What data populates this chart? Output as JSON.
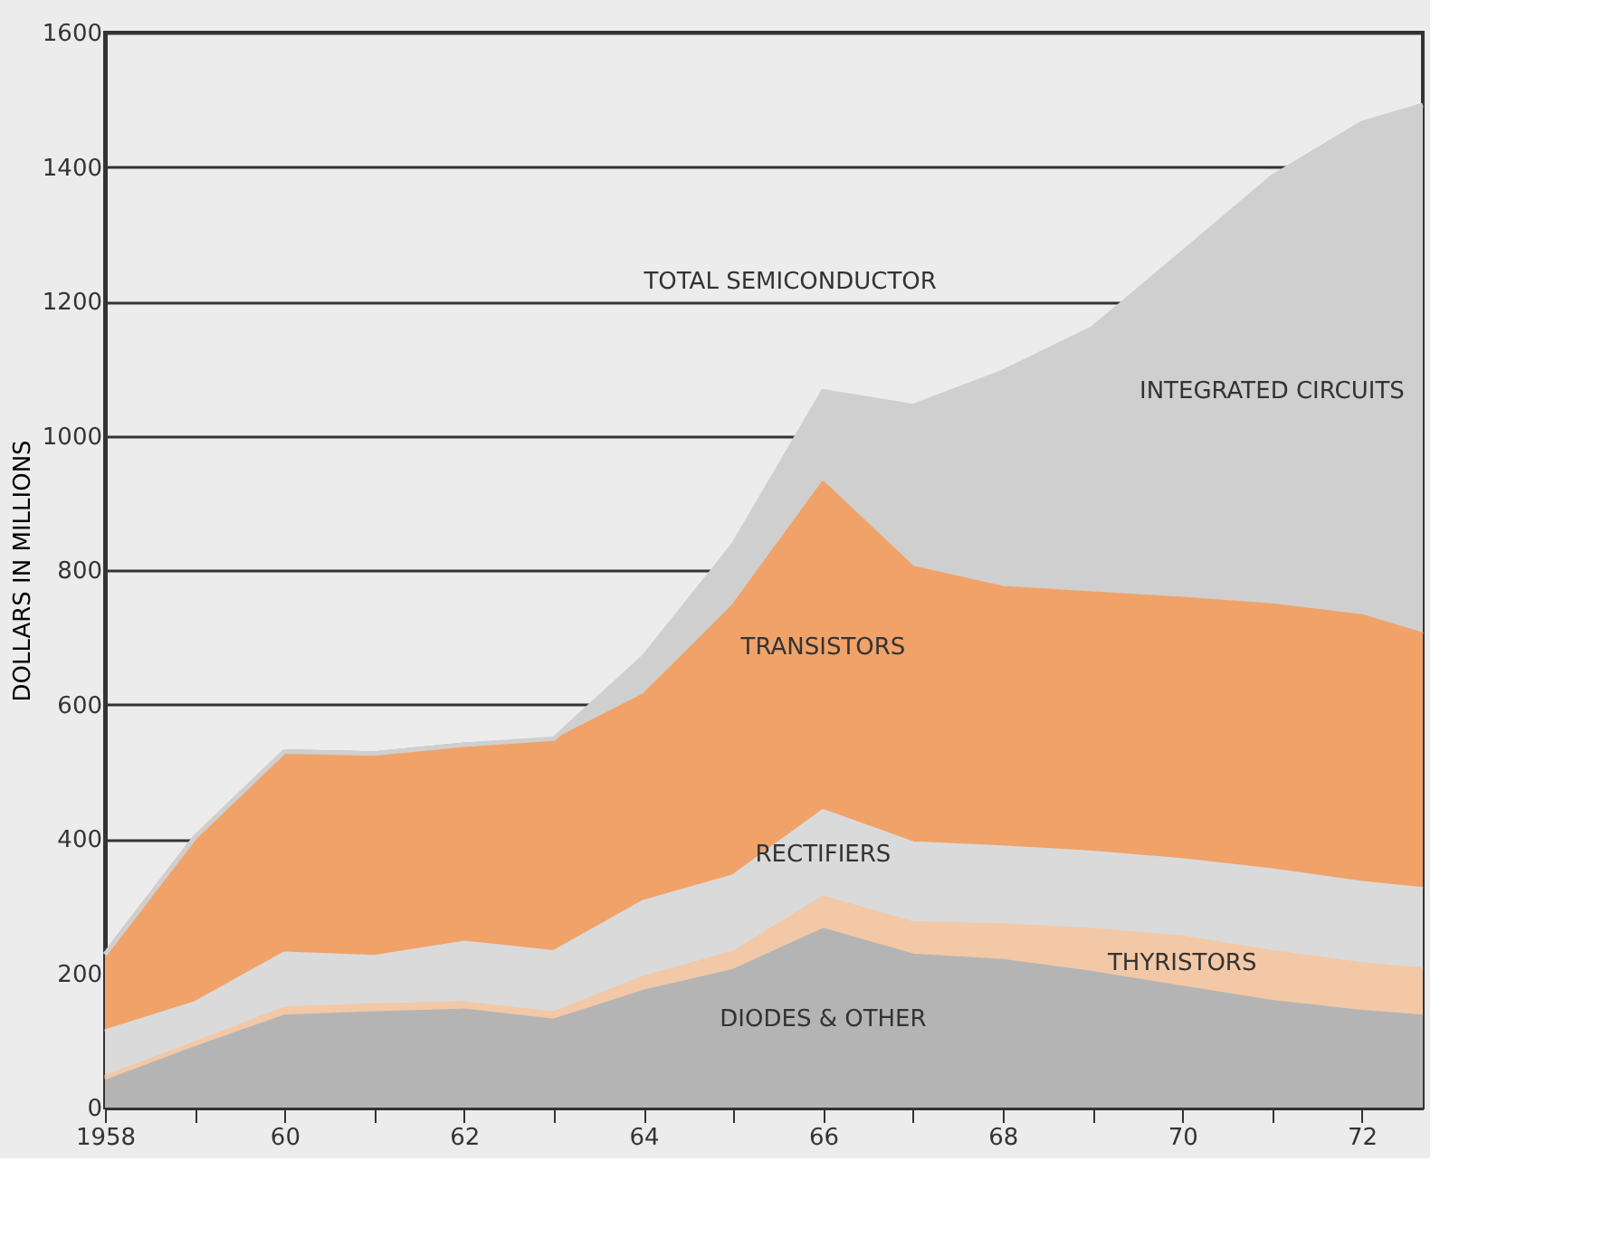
{
  "chart_data": {
    "type": "area",
    "stacked": true,
    "ylabel": "DOLLARS IN MILLIONS",
    "x": [
      1958,
      1959,
      1960,
      1961,
      1962,
      1963,
      1964,
      1965,
      1966,
      1967,
      1968,
      1969,
      1970,
      1971,
      1972,
      1972.68
    ],
    "xlim": [
      1958,
      1972.68
    ],
    "xticks": [
      1958,
      {
        "value": 1959,
        "label": null
      },
      {
        "value": 1960,
        "label": "60"
      },
      {
        "value": 1961,
        "label": null
      },
      {
        "value": 1962,
        "label": "62"
      },
      {
        "value": 1963,
        "label": null
      },
      {
        "value": 1964,
        "label": "64"
      },
      {
        "value": 1965,
        "label": null
      },
      {
        "value": 1966,
        "label": "66"
      },
      {
        "value": 1967,
        "label": null
      },
      {
        "value": 1968,
        "label": "68"
      },
      {
        "value": 1969,
        "label": null
      },
      {
        "value": 1970,
        "label": "70"
      },
      {
        "value": 1971,
        "label": null
      },
      {
        "value": 1972,
        "label": "72"
      }
    ],
    "ylim": [
      0,
      1600
    ],
    "yticks": [
      0,
      200,
      400,
      600,
      800,
      1000,
      1200,
      1400,
      1600
    ],
    "grid": "y",
    "series": [
      {
        "name": "DIODES & OTHER",
        "color": "#b4b4b4",
        "values": [
          42,
          88,
          135,
          140,
          144,
          129,
          172,
          203,
          264,
          226,
          218,
          200,
          178,
          157,
          142,
          135
        ]
      },
      {
        "name": "THYRISTORS",
        "color": "#f2c8a6",
        "values": [
          3,
          7,
          12,
          12,
          11,
          11,
          21,
          27,
          48,
          48,
          53,
          64,
          75,
          74,
          71,
          70
        ]
      },
      {
        "name": "RECTIFIERS",
        "color": "#dadada",
        "values": [
          68,
          60,
          82,
          72,
          90,
          91,
          113,
          114,
          129,
          119,
          116,
          115,
          115,
          122,
          121,
          120
        ]
      },
      {
        "name": "TRANSISTORS",
        "color": "#f0a268",
        "values": [
          115,
          247,
          301,
          303,
          295,
          314,
          307,
          402,
          488,
          410,
          386,
          386,
          389,
          394,
          397,
          379
        ]
      },
      {
        "name": "INTEGRATED CIRCUITS",
        "color": "#cfcfcf",
        "values": [
          0,
          0,
          0,
          0,
          0,
          4,
          58,
          92,
          137,
          241,
          322,
          395,
          515,
          638,
          734,
          788
        ]
      }
    ],
    "annotations": [
      "TOTAL SEMICONDUCTOR"
    ]
  }
}
